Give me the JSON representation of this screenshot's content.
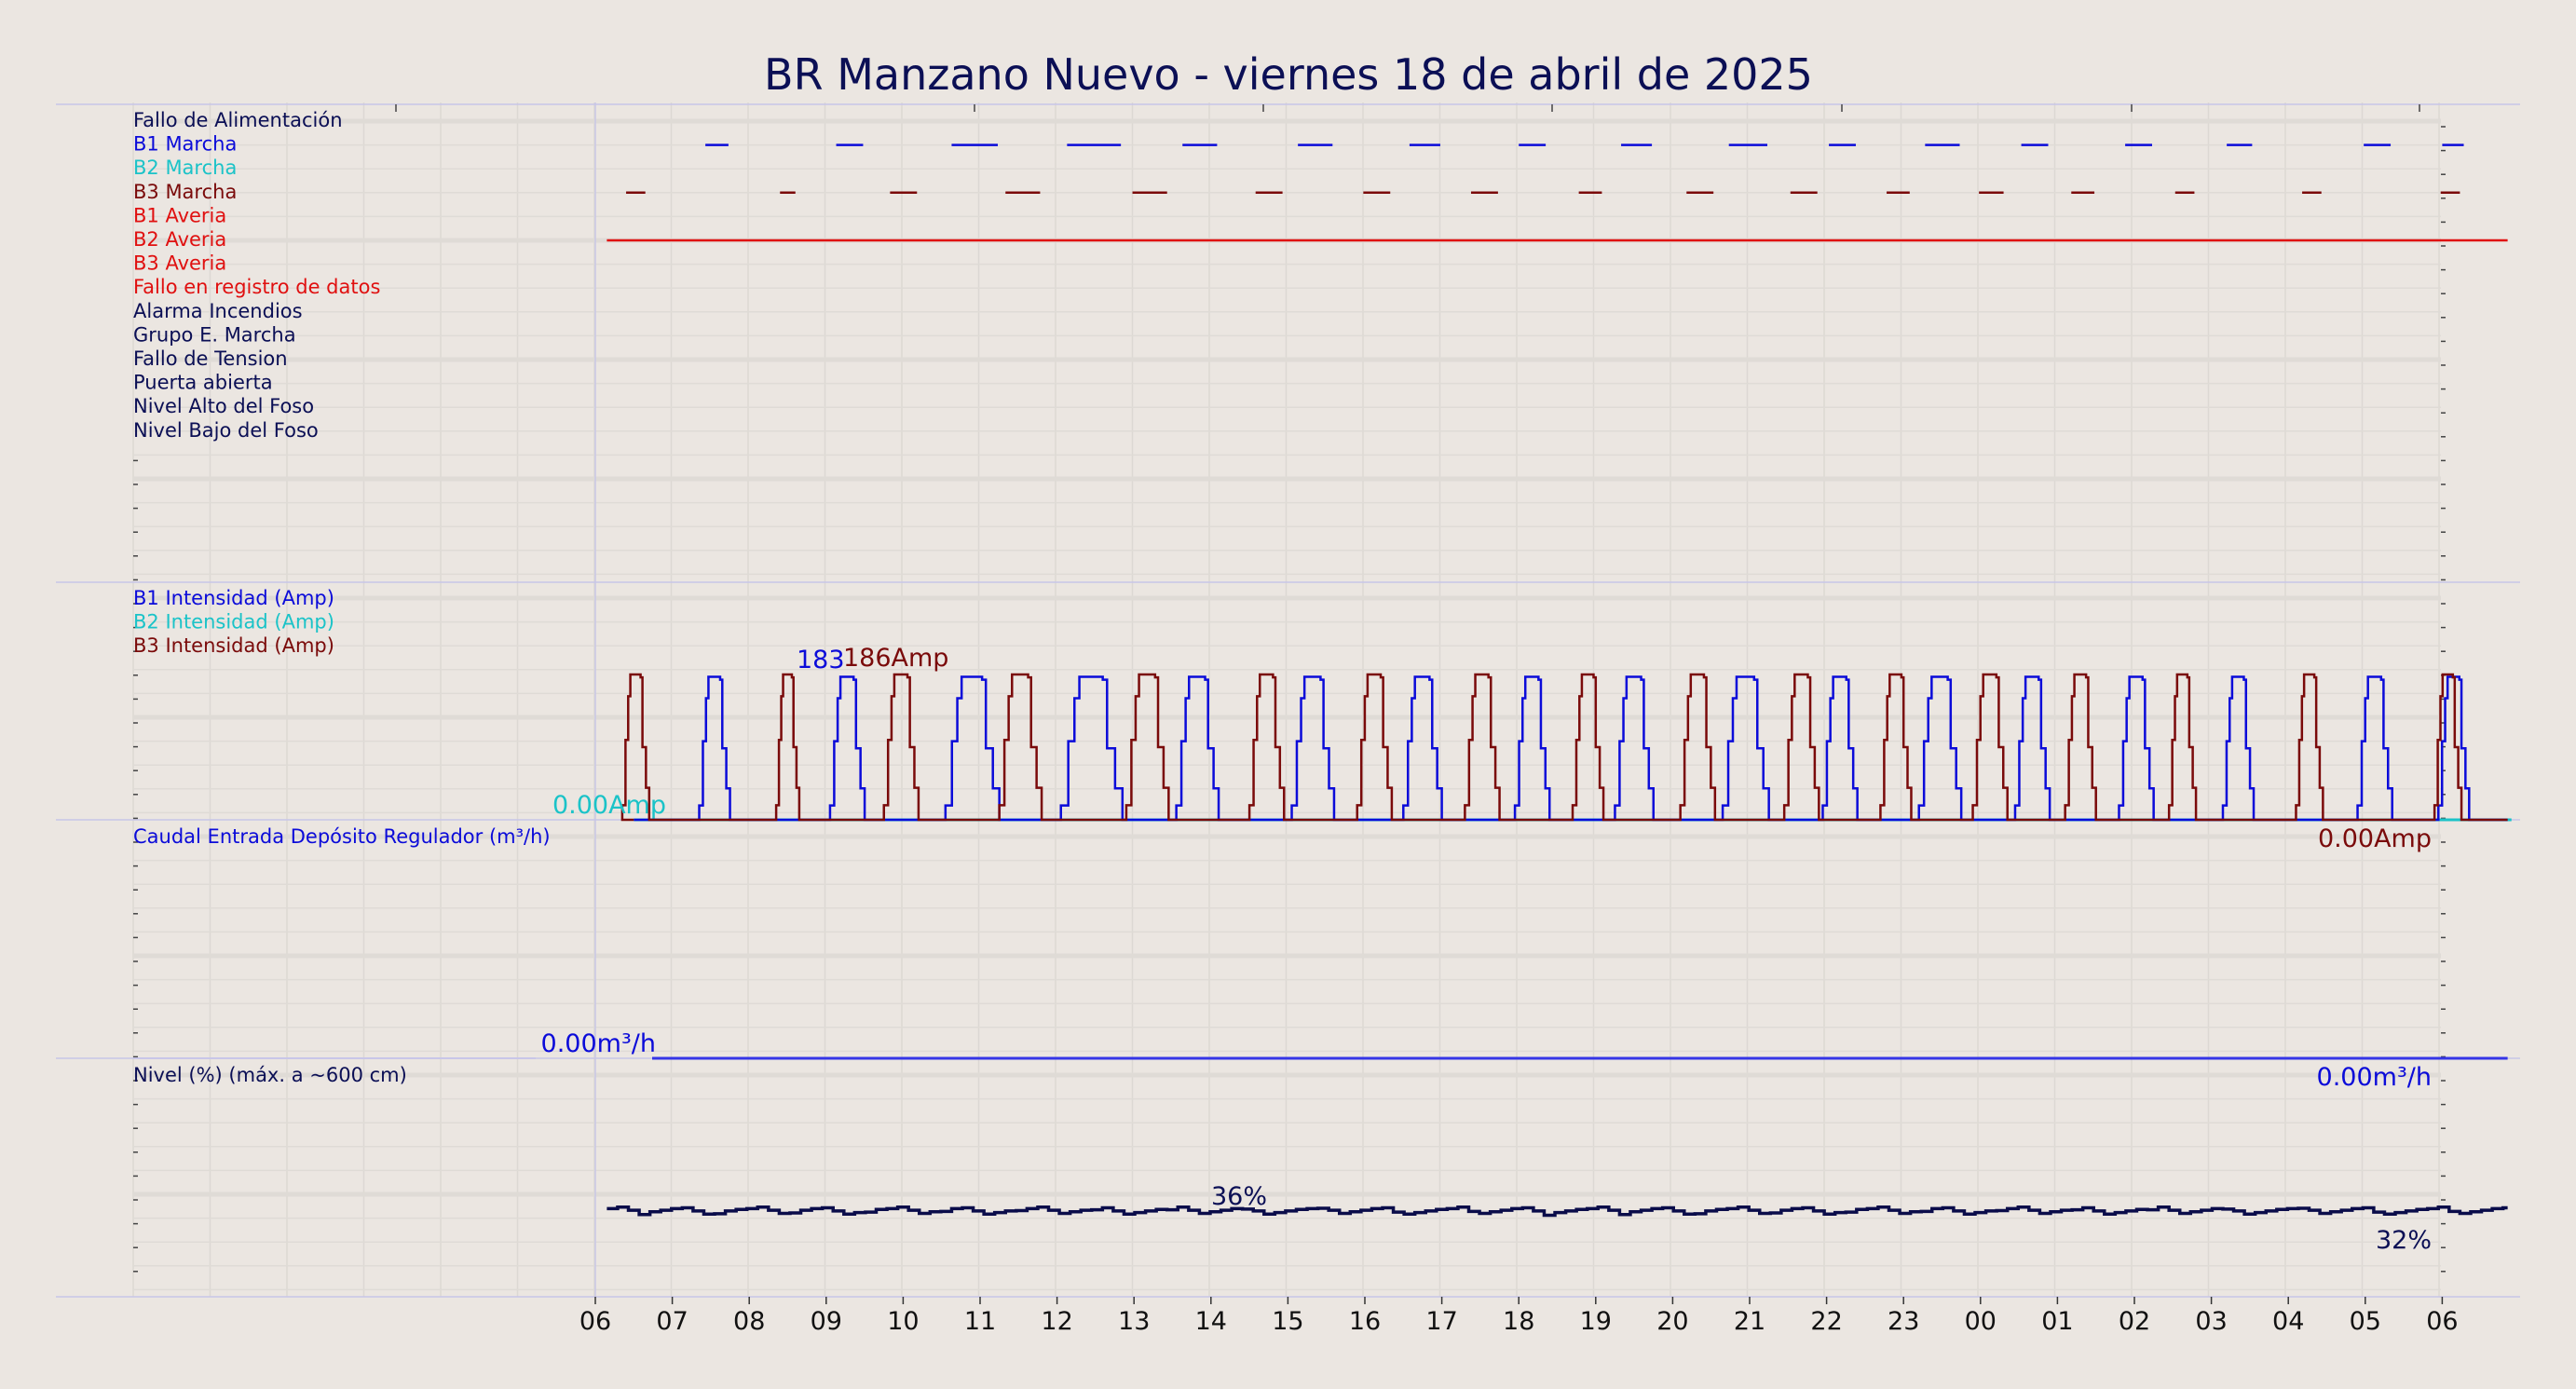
{
  "title": "BR Manzano Nuevo   -   viernes 18 de abril de 2025",
  "colors": {
    "background": "#ebe6e1",
    "navy": "#0b0f55",
    "blue": "#0b0bd9",
    "cyan": "#1bc3c8",
    "maroon": "#7a0a0a",
    "red": "#e01010",
    "level": "#0a0c4a",
    "flow": "#3535e6"
  },
  "chart_data": {
    "type": "line",
    "x_axis": {
      "ticks": [
        "06",
        "07",
        "08",
        "09",
        "10",
        "11",
        "12",
        "13",
        "14",
        "15",
        "16",
        "17",
        "18",
        "19",
        "20",
        "21",
        "22",
        "23",
        "00",
        "01",
        "02",
        "03",
        "04",
        "05",
        "06"
      ],
      "range_hours": [
        0,
        24
      ]
    },
    "panels": [
      {
        "id": "signals",
        "legend": [
          {
            "label": "Fallo de Alimentación",
            "color": "#0b0f55"
          },
          {
            "label": "B1 Marcha",
            "color": "#0b0bd9"
          },
          {
            "label": "B2 Marcha",
            "color": "#1bc3c8"
          },
          {
            "label": "B3 Marcha",
            "color": "#7a0a0a"
          },
          {
            "label": "B1 Averia",
            "color": "#e01010"
          },
          {
            "label": "B2 Averia",
            "color": "#e01010"
          },
          {
            "label": "B3 Averia",
            "color": "#e01010"
          },
          {
            "label": "Fallo en registro de datos",
            "color": "#e01010"
          },
          {
            "label": "Alarma Incendios",
            "color": "#0b0f55"
          },
          {
            "label": "Grupo E. Marcha",
            "color": "#0b0f55"
          },
          {
            "label": "Fallo de Tension",
            "color": "#0b0f55"
          },
          {
            "label": "Puerta abierta",
            "color": "#0b0f55"
          },
          {
            "label": "Nivel Alto del Foso",
            "color": "#0b0f55"
          },
          {
            "label": "Nivel Bajo del Foso",
            "color": "#0b0f55"
          }
        ],
        "series": [
          {
            "row": 1,
            "color": "#0b0bd9",
            "intervals_h": [
              [
                1.43,
                1.73
              ],
              [
                3.13,
                3.48
              ],
              [
                4.63,
                5.23
              ],
              [
                6.13,
                6.83
              ],
              [
                7.63,
                8.08
              ],
              [
                9.13,
                9.58
              ],
              [
                10.58,
                10.98
              ],
              [
                12.0,
                12.35
              ],
              [
                13.33,
                13.73
              ],
              [
                14.73,
                15.23
              ],
              [
                16.03,
                16.38
              ],
              [
                17.28,
                17.73
              ],
              [
                18.53,
                18.88
              ],
              [
                19.88,
                20.23
              ],
              [
                21.2,
                21.53
              ],
              [
                22.98,
                23.33
              ],
              [
                24.0,
                24.28
              ]
            ]
          },
          {
            "row": 3,
            "color": "#7a0a0a",
            "intervals_h": [
              [
                0.4,
                0.65
              ],
              [
                2.4,
                2.6
              ],
              [
                3.83,
                4.18
              ],
              [
                5.33,
                5.78
              ],
              [
                6.98,
                7.43
              ],
              [
                8.58,
                8.93
              ],
              [
                9.98,
                10.33
              ],
              [
                11.38,
                11.73
              ],
              [
                12.78,
                13.08
              ],
              [
                14.18,
                14.53
              ],
              [
                15.53,
                15.88
              ],
              [
                16.78,
                17.08
              ],
              [
                17.98,
                18.3
              ],
              [
                19.18,
                19.48
              ],
              [
                20.53,
                20.78
              ],
              [
                22.18,
                22.43
              ],
              [
                23.98,
                24.23
              ]
            ]
          },
          {
            "row": 5,
            "color": "#e01010",
            "intervals_h": [
              [
                0.15,
                24.85
              ]
            ]
          }
        ]
      },
      {
        "id": "current",
        "legend": [
          {
            "label": "B1 Intensidad (Amp)",
            "color": "#0b0bd9"
          },
          {
            "label": "B2 Intensidad (Amp)",
            "color": "#1bc3c8"
          },
          {
            "label": "B3 Intensidad (Amp)",
            "color": "#7a0a0a"
          }
        ],
        "unit": "Amp",
        "annotations": {
          "start": "0.00Amp",
          "end": "0.00Amp",
          "peak_b1": "183",
          "peak_b3": "186Amp"
        },
        "series": [
          {
            "name": "B1 Intensidad (Amp)",
            "color": "#0b0bd9",
            "pulses_h": [
              [
                1.35,
                1.75
              ],
              [
                3.05,
                3.5
              ],
              [
                4.55,
                5.25
              ],
              [
                6.05,
                6.85
              ],
              [
                7.55,
                8.1
              ],
              [
                9.05,
                9.6
              ],
              [
                10.5,
                11.0
              ],
              [
                11.95,
                12.4
              ],
              [
                13.25,
                13.75
              ],
              [
                14.65,
                15.25
              ],
              [
                15.95,
                16.4
              ],
              [
                17.2,
                17.75
              ],
              [
                18.45,
                18.9
              ],
              [
                19.8,
                20.25
              ],
              [
                21.15,
                21.55
              ],
              [
                22.9,
                23.35
              ],
              [
                23.95,
                24.35
              ]
            ],
            "peak": 183
          },
          {
            "name": "B2 Intensidad (Amp)",
            "color": "#1bc3c8",
            "pulses_h": [],
            "peak": 0
          },
          {
            "name": "B3 Intensidad (Amp)",
            "color": "#7a0a0a",
            "pulses_h": [
              [
                0.35,
                0.7
              ],
              [
                2.35,
                2.65
              ],
              [
                3.75,
                4.2
              ],
              [
                5.25,
                5.8
              ],
              [
                6.9,
                7.45
              ],
              [
                8.5,
                8.95
              ],
              [
                9.9,
                10.35
              ],
              [
                11.3,
                11.75
              ],
              [
                12.7,
                13.1
              ],
              [
                14.1,
                14.55
              ],
              [
                15.45,
                15.9
              ],
              [
                16.7,
                17.1
              ],
              [
                17.9,
                18.35
              ],
              [
                19.1,
                19.5
              ],
              [
                20.45,
                20.8
              ],
              [
                22.1,
                22.45
              ],
              [
                23.9,
                24.25
              ]
            ],
            "peak": 186
          }
        ]
      },
      {
        "id": "flow",
        "legend": [
          {
            "label": "Caudal Entrada Depósito Regulador (m³/h)",
            "color": "#0b0bd9"
          }
        ],
        "annotations": {
          "start": "0.00m³/h",
          "end": "0.00m³/h"
        },
        "series": [
          {
            "name": "Caudal Entrada Depósito Regulador (m³/h)",
            "color": "#3535e6",
            "constant": 0.0
          }
        ]
      },
      {
        "id": "level",
        "legend": [
          {
            "label": "Nivel (%) (máx. a ~600 cm)",
            "color": "#0b0f55"
          }
        ],
        "annotations": {
          "mid": "36%",
          "end": "32%"
        },
        "series": [
          {
            "name": "Nivel (%) (máx. a ~600 cm)",
            "color": "#0a0c4a",
            "min": 32,
            "max": 36,
            "start": 34
          }
        ]
      }
    ]
  }
}
